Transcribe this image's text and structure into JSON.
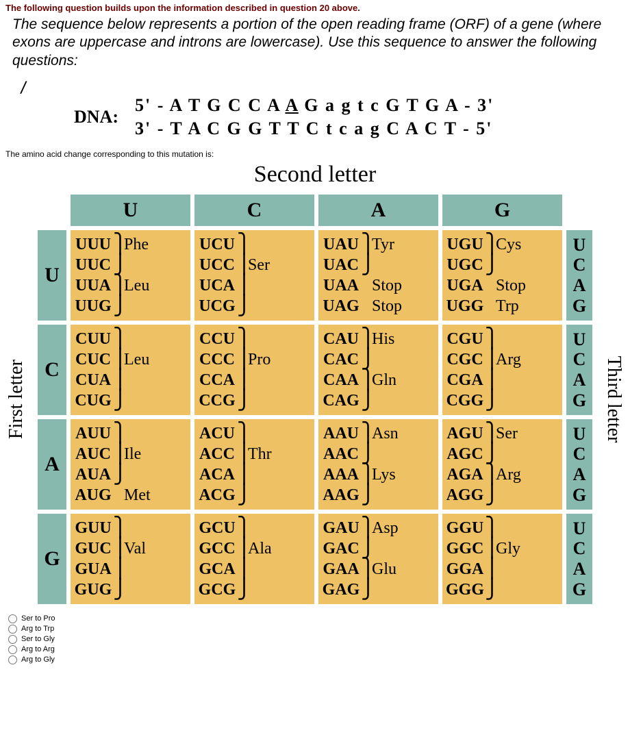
{
  "referenceLine": "The following question builds upon the information described in question 20 above.",
  "questionText": "The sequence below represents a portion of the open reading frame (ORF) of a gene (where exons are uppercase and introns are lowercase). Use this sequence to answer the following questions:",
  "dna": {
    "label": "DNA:",
    "top": {
      "l": "5' -",
      "pre": " A T G C C A ",
      "mut": "A",
      "post": " G a g t c G T G A ",
      "r": "- 3'"
    },
    "bot": {
      "l": "3' -",
      "seq": " T A C G G T T C t c a g C A C T ",
      "r": "- 5'"
    }
  },
  "subQuestion": "The amino acid change corresponding to this mutation is:",
  "codonHeader": "Second letter",
  "firstLetterLabel": "First letter",
  "thirdLetterLabel": "Third letter",
  "colHeads": [
    "U",
    "C",
    "A",
    "G"
  ],
  "rowHeads": [
    "U",
    "C",
    "A",
    "G"
  ],
  "thirdCol": "U\nC\nA\nG",
  "cells": {
    "UU": [
      [
        "UUU",
        "⎫",
        "Phe"
      ],
      [
        "UUC",
        "⎭",
        ""
      ],
      [
        "UUA",
        "⎫",
        "Leu"
      ],
      [
        "UUG",
        "⎭",
        ""
      ]
    ],
    "UC": [
      [
        "UCU",
        "⎫",
        ""
      ],
      [
        "UCC",
        "⎪",
        "Ser"
      ],
      [
        "UCA",
        "⎪",
        ""
      ],
      [
        "UCG",
        "⎭",
        ""
      ]
    ],
    "UA": [
      [
        "UAU",
        "⎫",
        "Tyr"
      ],
      [
        "UAC",
        "⎭",
        ""
      ],
      [
        "UAA",
        "",
        "Stop"
      ],
      [
        "UAG",
        "",
        "Stop"
      ]
    ],
    "UG": [
      [
        "UGU",
        "⎫",
        "Cys"
      ],
      [
        "UGC",
        "⎭",
        ""
      ],
      [
        "UGA",
        "",
        "Stop"
      ],
      [
        "UGG",
        "",
        "Trp"
      ]
    ],
    "CU": [
      [
        "CUU",
        "⎫",
        ""
      ],
      [
        "CUC",
        "⎪",
        "Leu"
      ],
      [
        "CUA",
        "⎪",
        ""
      ],
      [
        "CUG",
        "⎭",
        ""
      ]
    ],
    "CC": [
      [
        "CCU",
        "⎫",
        ""
      ],
      [
        "CCC",
        "⎪",
        "Pro"
      ],
      [
        "CCA",
        "⎪",
        ""
      ],
      [
        "CCG",
        "⎭",
        ""
      ]
    ],
    "CA": [
      [
        "CAU",
        "⎫",
        "His"
      ],
      [
        "CAC",
        "⎭",
        ""
      ],
      [
        "CAA",
        "⎫",
        "Gln"
      ],
      [
        "CAG",
        "⎭",
        ""
      ]
    ],
    "CG": [
      [
        "CGU",
        "⎫",
        ""
      ],
      [
        "CGC",
        "⎪",
        "Arg"
      ],
      [
        "CGA",
        "⎪",
        ""
      ],
      [
        "CGG",
        "⎭",
        ""
      ]
    ],
    "AU": [
      [
        "AUU",
        "⎫",
        ""
      ],
      [
        "AUC",
        "⎪",
        "Ile"
      ],
      [
        "AUA",
        "⎭",
        ""
      ],
      [
        "AUG",
        "",
        "Met"
      ]
    ],
    "AC": [
      [
        "ACU",
        "⎫",
        ""
      ],
      [
        "ACC",
        "⎪",
        "Thr"
      ],
      [
        "ACA",
        "⎪",
        ""
      ],
      [
        "ACG",
        "⎭",
        ""
      ]
    ],
    "AA": [
      [
        "AAU",
        "⎫",
        "Asn"
      ],
      [
        "AAC",
        "⎭",
        ""
      ],
      [
        "AAA",
        "⎫",
        "Lys"
      ],
      [
        "AAG",
        "⎭",
        ""
      ]
    ],
    "AG": [
      [
        "AGU",
        "⎫",
        "Ser"
      ],
      [
        "AGC",
        "⎭",
        ""
      ],
      [
        "AGA",
        "⎫",
        "Arg"
      ],
      [
        "AGG",
        "⎭",
        ""
      ]
    ],
    "GU": [
      [
        "GUU",
        "⎫",
        ""
      ],
      [
        "GUC",
        "⎪",
        "Val"
      ],
      [
        "GUA",
        "⎪",
        ""
      ],
      [
        "GUG",
        "⎭",
        ""
      ]
    ],
    "GC": [
      [
        "GCU",
        "⎫",
        ""
      ],
      [
        "GCC",
        "⎪",
        "Ala"
      ],
      [
        "GCA",
        "⎪",
        ""
      ],
      [
        "GCG",
        "⎭",
        ""
      ]
    ],
    "GA": [
      [
        "GAU",
        "⎫",
        "Asp"
      ],
      [
        "GAC",
        "⎭",
        ""
      ],
      [
        "GAA",
        "⎫",
        "Glu"
      ],
      [
        "GAG",
        "⎭",
        ""
      ]
    ],
    "GG": [
      [
        "GGU",
        "⎫",
        ""
      ],
      [
        "GGC",
        "⎪",
        "Gly"
      ],
      [
        "GGA",
        "⎪",
        ""
      ],
      [
        "GGG",
        "⎭",
        ""
      ]
    ]
  },
  "options": [
    "Ser to Pro",
    "Arg to Trp",
    "Ser to Gly",
    "Arg to Arg",
    "Arg to Gly"
  ],
  "colors": {
    "tealBg": "#87b9af",
    "cellBg": "#eec264",
    "refText": "#6a0000"
  }
}
